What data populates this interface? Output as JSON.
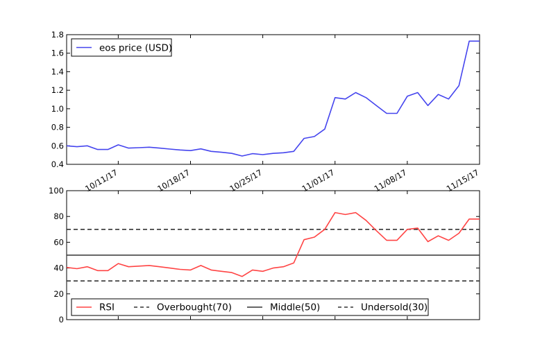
{
  "chart_data": [
    {
      "type": "line",
      "x_ticks": [
        "10/11/17",
        "10/18/17",
        "10/25/17",
        "11/01/17",
        "11/08/17",
        "11/15/17"
      ],
      "y_ticks": [
        "0.4",
        "0.6",
        "0.8",
        "1.0",
        "1.2",
        "1.4",
        "1.6",
        "1.8"
      ],
      "ylim": [
        0.4,
        1.8
      ],
      "xlim": [
        "2017-10-06",
        "2017-11-15"
      ],
      "grid": false,
      "legend_position": "top-left",
      "series": [
        {
          "name": "eos price (USD)",
          "color": "#4444ee",
          "x": [
            "2017-10-06",
            "2017-10-07",
            "2017-10-08",
            "2017-10-09",
            "2017-10-10",
            "2017-10-11",
            "2017-10-12",
            "2017-10-13",
            "2017-10-14",
            "2017-10-15",
            "2017-10-16",
            "2017-10-17",
            "2017-10-18",
            "2017-10-19",
            "2017-10-20",
            "2017-10-21",
            "2017-10-22",
            "2017-10-23",
            "2017-10-24",
            "2017-10-25",
            "2017-10-26",
            "2017-10-27",
            "2017-10-28",
            "2017-10-29",
            "2017-10-30",
            "2017-10-31",
            "2017-11-01",
            "2017-11-02",
            "2017-11-03",
            "2017-11-04",
            "2017-11-05",
            "2017-11-06",
            "2017-11-07",
            "2017-11-08",
            "2017-11-09",
            "2017-11-10",
            "2017-11-11",
            "2017-11-12",
            "2017-11-13",
            "2017-11-14",
            "2017-11-15"
          ],
          "values": [
            0.6,
            0.59,
            0.6,
            0.56,
            0.56,
            0.61,
            0.575,
            0.58,
            0.585,
            0.575,
            0.565,
            0.555,
            0.548,
            0.567,
            0.54,
            0.53,
            0.518,
            0.49,
            0.515,
            0.505,
            0.518,
            0.525,
            0.54,
            0.68,
            0.7,
            0.78,
            1.12,
            1.105,
            1.175,
            1.12,
            1.035,
            0.95,
            0.95,
            1.135,
            1.175,
            1.035,
            1.155,
            1.105,
            1.25,
            1.73,
            1.73
          ]
        }
      ]
    },
    {
      "type": "line",
      "y_ticks": [
        "0",
        "20",
        "40",
        "60",
        "80",
        "100"
      ],
      "ylim": [
        0,
        100
      ],
      "xlim": [
        "2017-10-06",
        "2017-11-15"
      ],
      "grid": false,
      "legend_position": "bottom",
      "series": [
        {
          "name": "RSI",
          "color": "#ff4444",
          "x": [
            "2017-10-06",
            "2017-10-07",
            "2017-10-08",
            "2017-10-09",
            "2017-10-10",
            "2017-10-11",
            "2017-10-12",
            "2017-10-13",
            "2017-10-14",
            "2017-10-15",
            "2017-10-16",
            "2017-10-17",
            "2017-10-18",
            "2017-10-19",
            "2017-10-20",
            "2017-10-21",
            "2017-10-22",
            "2017-10-23",
            "2017-10-24",
            "2017-10-25",
            "2017-10-26",
            "2017-10-27",
            "2017-10-28",
            "2017-10-29",
            "2017-10-30",
            "2017-10-31",
            "2017-11-01",
            "2017-11-02",
            "2017-11-03",
            "2017-11-04",
            "2017-11-05",
            "2017-11-06",
            "2017-11-07",
            "2017-11-08",
            "2017-11-09",
            "2017-11-10",
            "2017-11-11",
            "2017-11-12",
            "2017-11-13",
            "2017-11-14",
            "2017-11-15"
          ],
          "values": [
            40.5,
            39.5,
            41,
            38,
            38,
            43.5,
            41,
            41.5,
            42,
            41,
            40,
            39,
            38.5,
            42,
            38.5,
            37.5,
            36.5,
            33.5,
            38.5,
            37.5,
            40,
            41,
            44,
            62,
            64,
            70,
            83,
            81.5,
            83,
            77,
            69,
            61.5,
            61.5,
            70,
            71,
            60.5,
            65,
            61.5,
            67,
            78,
            78
          ]
        },
        {
          "name": "Overbought(70)",
          "color": "#333333",
          "dash": "dashed",
          "value": 70
        },
        {
          "name": "Middle(50)",
          "color": "#333333",
          "dash": "solid",
          "value": 50
        },
        {
          "name": "Undersold(30)",
          "color": "#333333",
          "dash": "dashed",
          "value": 30
        }
      ]
    }
  ]
}
